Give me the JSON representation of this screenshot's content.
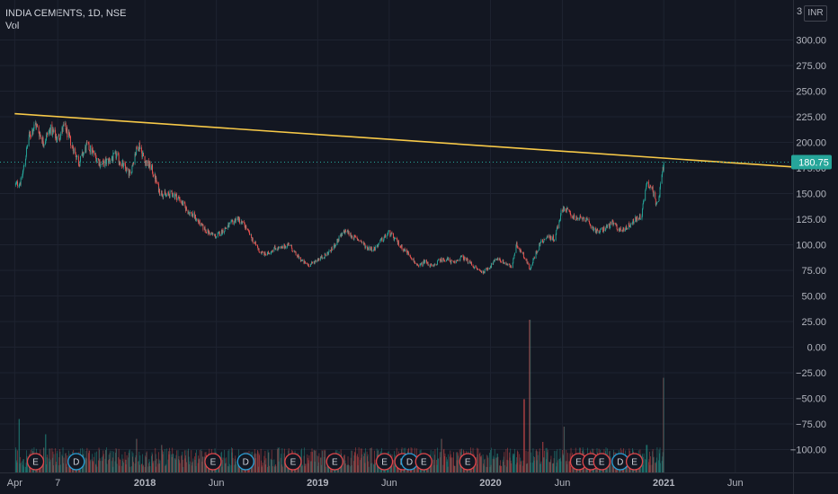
{
  "chart_data": {
    "type": "candlestick",
    "title": "INDIA CEMENTS, 1D, NSE",
    "volume_label": "Vol",
    "currency": "INR",
    "axis_cut_label": "3",
    "ylim": [
      -125,
      335
    ],
    "y_ticks": [
      "300.00",
      "275.00",
      "250.00",
      "225.00",
      "200.00",
      "175.00",
      "150.00",
      "125.00",
      "100.00",
      "75.00",
      "50.00",
      "25.00",
      "0.00",
      "−25.00",
      "−50.00",
      "−75.00",
      "−100.00"
    ],
    "y_tick_values": [
      300,
      275,
      250,
      225,
      200,
      175,
      150,
      125,
      100,
      75,
      50,
      25,
      0,
      -25,
      -50,
      -75,
      -100
    ],
    "x_ticks": [
      "Apr",
      "7",
      "2018",
      "Jun",
      "2019",
      "Jun",
      "2020",
      "Jun",
      "2021",
      "Jun"
    ],
    "bold_x_ticks": [
      "2018",
      "2019",
      "2020",
      "2021"
    ],
    "last_price": "180.75",
    "last_price_value": 180.75,
    "colors": {
      "up": "#26a69a",
      "down": "#ef5350",
      "trendline": "#f7c948",
      "price_label": "#26a69a",
      "background": "#131722",
      "grid": "#1e2330"
    },
    "trendline": {
      "start": [
        "2017-04-01",
        228
      ],
      "end": [
        "2021-09-30",
        176
      ]
    },
    "price_path": [
      [
        "2017-04-01",
        158
      ],
      [
        "2017-04-15",
        162
      ],
      [
        "2017-05-01",
        205
      ],
      [
        "2017-05-15",
        218
      ],
      [
        "2017-06-01",
        200
      ],
      [
        "2017-06-15",
        213
      ],
      [
        "2017-07-01",
        203
      ],
      [
        "2017-07-15",
        216
      ],
      [
        "2017-08-01",
        196
      ],
      [
        "2017-08-15",
        180
      ],
      [
        "2017-09-01",
        197
      ],
      [
        "2017-09-15",
        189
      ],
      [
        "2017-10-01",
        178
      ],
      [
        "2017-10-15",
        182
      ],
      [
        "2017-11-01",
        187
      ],
      [
        "2017-11-15",
        178
      ],
      [
        "2017-12-01",
        168
      ],
      [
        "2017-12-10",
        188
      ],
      [
        "2017-12-20",
        198
      ],
      [
        "2018-01-01",
        182
      ],
      [
        "2018-01-15",
        175
      ],
      [
        "2018-02-01",
        152
      ],
      [
        "2018-02-15",
        148
      ],
      [
        "2018-03-01",
        150
      ],
      [
        "2018-03-15",
        145
      ],
      [
        "2018-04-01",
        133
      ],
      [
        "2018-04-15",
        128
      ],
      [
        "2018-05-01",
        118
      ],
      [
        "2018-05-15",
        112
      ],
      [
        "2018-06-01",
        108
      ],
      [
        "2018-06-15",
        114
      ],
      [
        "2018-07-01",
        120
      ],
      [
        "2018-07-15",
        126
      ],
      [
        "2018-08-01",
        118
      ],
      [
        "2018-08-15",
        106
      ],
      [
        "2018-09-01",
        93
      ],
      [
        "2018-09-15",
        90
      ],
      [
        "2018-10-01",
        97
      ],
      [
        "2018-10-15",
        96
      ],
      [
        "2018-11-01",
        101
      ],
      [
        "2018-11-15",
        91
      ],
      [
        "2018-12-01",
        83
      ],
      [
        "2018-12-15",
        80
      ],
      [
        "2019-01-01",
        86
      ],
      [
        "2019-01-15",
        89
      ],
      [
        "2019-02-01",
        96
      ],
      [
        "2019-02-15",
        106
      ],
      [
        "2019-03-01",
        114
      ],
      [
        "2019-03-15",
        108
      ],
      [
        "2019-04-01",
        104
      ],
      [
        "2019-04-15",
        97
      ],
      [
        "2019-05-01",
        96
      ],
      [
        "2019-05-15",
        104
      ],
      [
        "2019-06-01",
        112
      ],
      [
        "2019-06-15",
        104
      ],
      [
        "2019-07-01",
        96
      ],
      [
        "2019-07-15",
        90
      ],
      [
        "2019-08-01",
        78
      ],
      [
        "2019-08-15",
        84
      ],
      [
        "2019-09-01",
        78
      ],
      [
        "2019-09-15",
        85
      ],
      [
        "2019-10-01",
        86
      ],
      [
        "2019-10-15",
        82
      ],
      [
        "2019-11-01",
        88
      ],
      [
        "2019-11-15",
        84
      ],
      [
        "2019-12-01",
        77
      ],
      [
        "2019-12-15",
        73
      ],
      [
        "2020-01-01",
        79
      ],
      [
        "2020-01-15",
        87
      ],
      [
        "2020-02-01",
        82
      ],
      [
        "2020-02-15",
        78
      ],
      [
        "2020-02-25",
        100
      ],
      [
        "2020-03-10",
        91
      ],
      [
        "2020-03-25",
        76
      ],
      [
        "2020-04-01",
        86
      ],
      [
        "2020-04-15",
        102
      ],
      [
        "2020-05-01",
        108
      ],
      [
        "2020-05-15",
        106
      ],
      [
        "2020-06-01",
        136
      ],
      [
        "2020-06-15",
        132
      ],
      [
        "2020-07-01",
        124
      ],
      [
        "2020-07-15",
        127
      ],
      [
        "2020-08-01",
        118
      ],
      [
        "2020-08-15",
        112
      ],
      [
        "2020-09-01",
        117
      ],
      [
        "2020-09-15",
        121
      ],
      [
        "2020-10-01",
        114
      ],
      [
        "2020-10-15",
        117
      ],
      [
        "2020-11-01",
        124
      ],
      [
        "2020-11-15",
        128
      ],
      [
        "2020-11-25",
        160
      ],
      [
        "2020-12-05",
        158
      ],
      [
        "2020-12-15",
        142
      ],
      [
        "2020-12-22",
        146
      ],
      [
        "2021-01-01",
        180.75
      ]
    ],
    "volume_spikes": [
      [
        "2017-04-10",
        0.35
      ],
      [
        "2017-06-05",
        0.25
      ],
      [
        "2017-12-15",
        0.22
      ],
      [
        "2018-02-05",
        0.18
      ],
      [
        "2019-07-20",
        0.16
      ],
      [
        "2019-09-20",
        0.22
      ],
      [
        "2019-11-10",
        0.14
      ],
      [
        "2020-03-12",
        0.48
      ],
      [
        "2020-03-24",
        1.0
      ],
      [
        "2020-04-20",
        0.2
      ],
      [
        "2020-06-05",
        0.3
      ],
      [
        "2020-11-26",
        0.18
      ],
      [
        "2021-01-01",
        0.62
      ]
    ],
    "events": [
      {
        "date": "2017-05-15",
        "type": "E"
      },
      {
        "date": "2017-08-09",
        "type": "D"
      },
      {
        "date": "2018-05-25",
        "type": "E"
      },
      {
        "date": "2018-08-02",
        "type": "D"
      },
      {
        "date": "2018-11-10",
        "type": "E"
      },
      {
        "date": "2019-02-06",
        "type": "E"
      },
      {
        "date": "2019-05-22",
        "type": "E"
      },
      {
        "date": "2019-06-30",
        "type": "E"
      },
      {
        "date": "2019-07-14",
        "type": "D"
      },
      {
        "date": "2019-08-13",
        "type": "E"
      },
      {
        "date": "2019-11-14",
        "type": "E"
      },
      {
        "date": "2020-07-05",
        "type": "E"
      },
      {
        "date": "2020-07-31",
        "type": "E"
      },
      {
        "date": "2020-08-23",
        "type": "E"
      },
      {
        "date": "2020-10-01",
        "type": "D"
      },
      {
        "date": "2020-10-31",
        "type": "E"
      }
    ]
  }
}
